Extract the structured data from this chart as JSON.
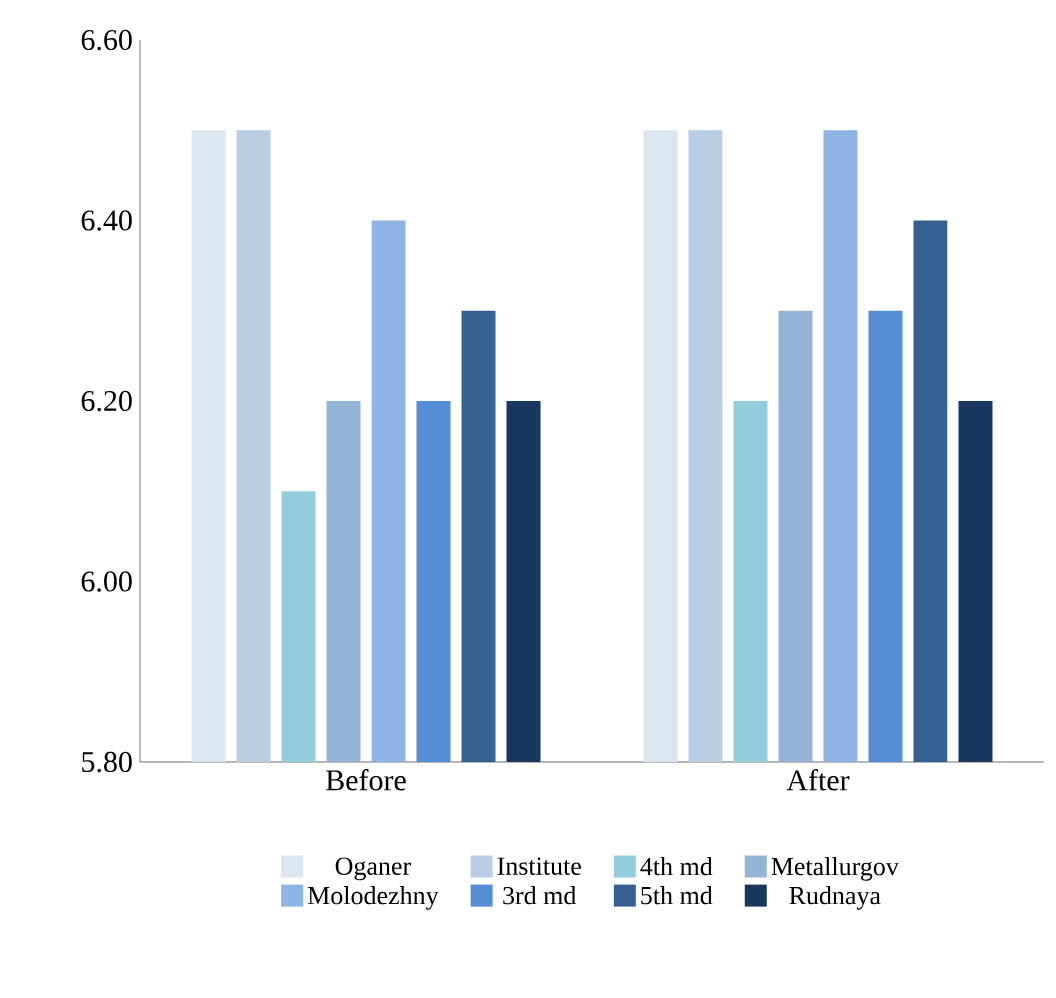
{
  "chart_data": {
    "type": "bar",
    "categories": [
      "Before",
      "After"
    ],
    "series": [
      {
        "name": "Oganer",
        "color": "#dce6f2",
        "values": [
          6.5,
          6.5
        ]
      },
      {
        "name": "Institute",
        "color": "#b9cde5",
        "values": [
          6.5,
          6.5
        ]
      },
      {
        "name": "4th md",
        "color": "#93cddd",
        "values": [
          6.1,
          6.2
        ]
      },
      {
        "name": "Metallurgov",
        "color": "#95b3d7",
        "values": [
          6.2,
          6.3
        ]
      },
      {
        "name": "Molodezhny",
        "color": "#8db4e2",
        "values": [
          6.4,
          6.5
        ]
      },
      {
        "name": "3rd md",
        "color": "#558ed5",
        "values": [
          6.2,
          6.3
        ]
      },
      {
        "name": "5th md",
        "color": "#366092",
        "values": [
          6.3,
          6.4
        ]
      },
      {
        "name": "Rudnaya",
        "color": "#17375e",
        "values": [
          6.2,
          6.2
        ]
      }
    ],
    "ylim": [
      5.8,
      6.6
    ],
    "yticks": [
      {
        "value": 5.8,
        "label": "5.80"
      },
      {
        "value": 6.0,
        "label": "6.00"
      },
      {
        "value": 6.2,
        "label": "6.20"
      },
      {
        "value": 6.4,
        "label": "6.40"
      },
      {
        "value": 6.6,
        "label": "6.60"
      }
    ],
    "grid": false,
    "legend": "bottom"
  }
}
